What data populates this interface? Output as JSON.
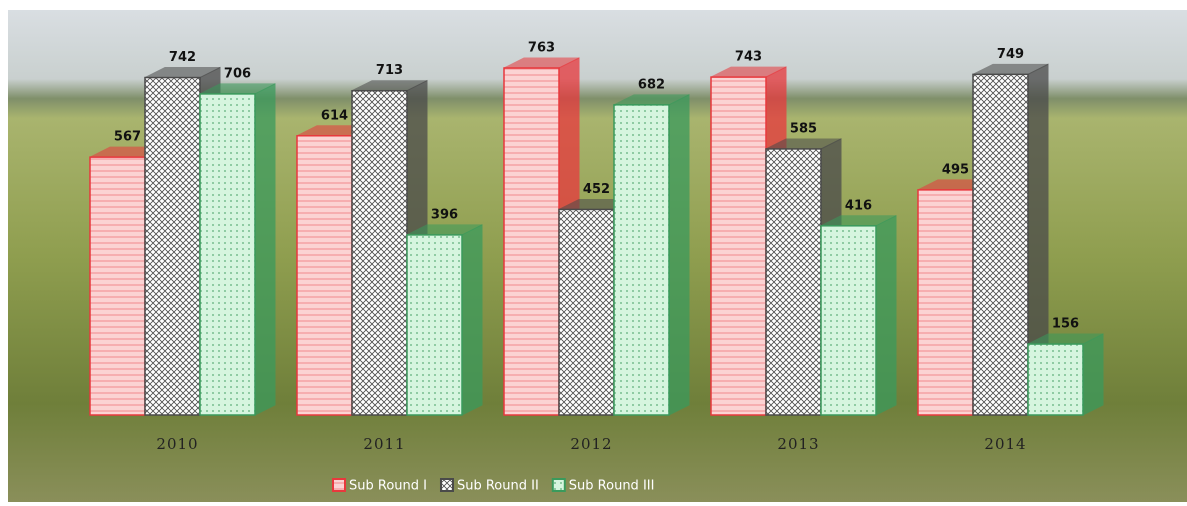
{
  "chart_data": {
    "type": "bar3d",
    "categories": [
      "2010",
      "2011",
      "2012",
      "2013",
      "2014"
    ],
    "series": [
      {
        "name": "Sub Round I",
        "color": "#e8383d",
        "values": [
          567,
          614,
          763,
          743,
          495
        ]
      },
      {
        "name": "Sub Round II",
        "color": "#4a4a4a",
        "values": [
          742,
          713,
          452,
          585,
          749
        ]
      },
      {
        "name": "Sub Round III",
        "color": "#3a9a5c",
        "values": [
          706,
          396,
          682,
          416,
          156
        ]
      }
    ],
    "legend": "bottom"
  }
}
